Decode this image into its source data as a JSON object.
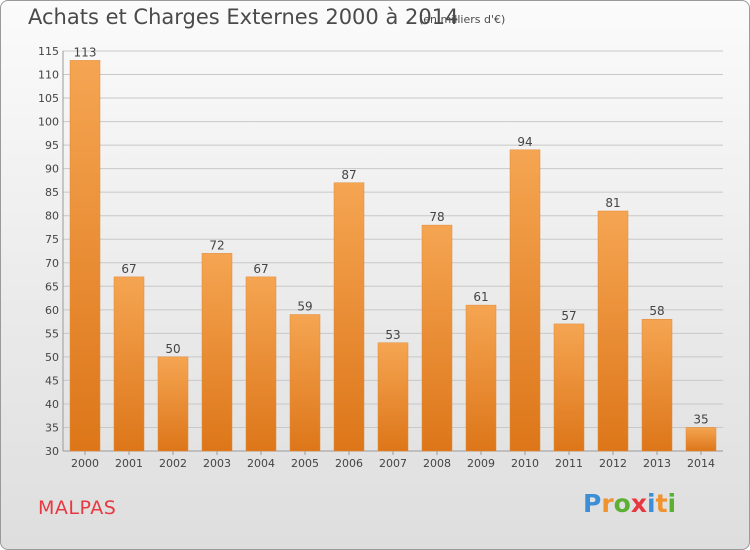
{
  "title": "Achats et Charges Externes 2000 à 2014",
  "subtitle": "(en milliers d'€)",
  "commune": "MALPAS",
  "logo": {
    "text": "Proxiti",
    "letters": [
      "P",
      "r",
      "o",
      "x",
      "i",
      "t",
      "i"
    ],
    "colors": [
      "#3c8fd6",
      "#f0922e",
      "#5bb033",
      "#e8383f",
      "#3c8fd6",
      "#f0922e",
      "#5bb033"
    ]
  },
  "colors": {
    "bar_top": "#f5a552",
    "bar_bottom": "#dd7619",
    "grid": "#c8c8c8",
    "text": "#444444",
    "commune": "#e8383f"
  },
  "chart_data": {
    "type": "bar",
    "categories": [
      "2000",
      "2001",
      "2002",
      "2003",
      "2004",
      "2005",
      "2006",
      "2007",
      "2008",
      "2009",
      "2010",
      "2011",
      "2012",
      "2013",
      "2014"
    ],
    "values": [
      113,
      67,
      50,
      72,
      67,
      59,
      87,
      53,
      78,
      61,
      94,
      57,
      81,
      58,
      35
    ],
    "title": "Achats et Charges Externes 2000 à 2014",
    "ylim": [
      30,
      115
    ],
    "yticks": [
      30,
      35,
      40,
      45,
      50,
      55,
      60,
      65,
      70,
      75,
      80,
      85,
      90,
      95,
      100,
      105,
      110,
      115
    ],
    "grid": true,
    "data_labels": true
  }
}
